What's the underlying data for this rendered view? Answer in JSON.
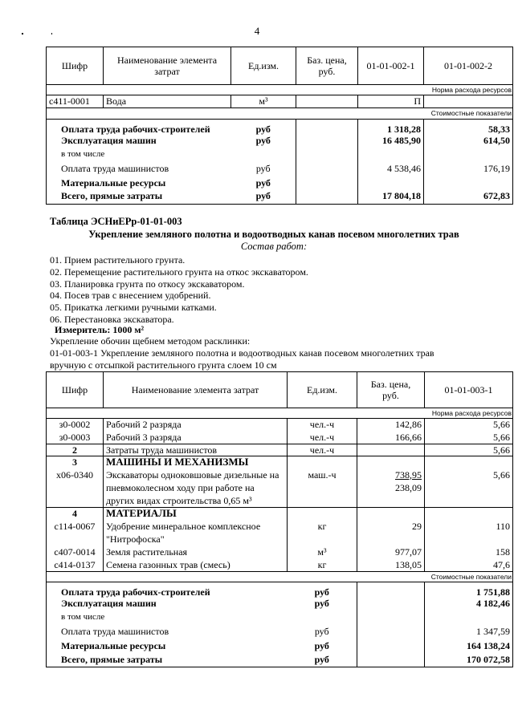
{
  "page_number": "4",
  "table1": {
    "headers": [
      "Шифр",
      "Наименование элемента затрат",
      "Ед.изм.",
      "Баз. цена, руб.",
      "01-01-002-1",
      "01-01-002-2"
    ],
    "section_norm": "Норма расхода ресурсов",
    "rows": [
      {
        "code": "с411-0001",
        "name": "Вода",
        "unit": "м³",
        "price": "",
        "v1": "П",
        "v2": ""
      }
    ],
    "section_cost": "Стоимостные показатели",
    "cost_rows": [
      {
        "name": "Оплата труда рабочих-строителей",
        "unit": "руб",
        "v1": "1 318,28",
        "v2": "58,33",
        "bold": true
      },
      {
        "name": "Эксплуатация машин",
        "unit": "руб",
        "v1": "16 485,90",
        "v2": "614,50",
        "bold": true
      },
      {
        "name": "в том числе",
        "unit": "",
        "v1": "",
        "v2": ""
      },
      {
        "name": "Оплата труда машинистов",
        "unit": "руб",
        "v1": "4 538,46",
        "v2": "176,19"
      },
      {
        "name": "Материальные ресурсы",
        "unit": "руб",
        "v1": "",
        "v2": "",
        "bold": true
      },
      {
        "name": "Всего, прямые затраты",
        "unit": "руб",
        "v1": "17 804,18",
        "v2": "672,83",
        "bold": true
      }
    ]
  },
  "section": {
    "table_title": "Таблица  ЭСНиЕРр-01-01-003",
    "subtitle": "Укрепление земляного полотна и водоотводных канав посевом многолетних трав",
    "work_heading": "Состав работ:",
    "work_items": [
      "01. Прием растительного грунта.",
      "02. Перемещение растительного грунта на откос экскаватором.",
      "03. Планировка грунта по откосу экскаватором.",
      "04. Посев трав с внесением удобрений.",
      "05. Прикатка легкими ручными катками.",
      "06. Перестановка экскаватора."
    ],
    "meter": "Измеритель: 1000 м²",
    "line1": "Укрепление обочин щебнем методом расклинки:",
    "line2": "01-01-003-1 Укрепление земляного полотна и водоотводных канав посевом многолетних трав",
    "line3": "вручную с отсыпкой растительного грунта слоем 10 см"
  },
  "table2": {
    "headers": [
      "Шифр",
      "Наименование элемента затрат",
      "Ед.изм.",
      "Баз. цена, руб.",
      "01-01-003-1"
    ],
    "section_norm": "Норма расхода ресурсов",
    "r1": {
      "code": "з0-0002",
      "name": "Рабочий 2 разряда",
      "unit": "чел.-ч",
      "price": "142,86",
      "v": "5,66"
    },
    "r2": {
      "code": "з0-0003",
      "name": "Рабочий 3 разряда",
      "unit": "чел.-ч",
      "price": "166,66",
      "v": "5,66"
    },
    "r3": {
      "code": "2",
      "name": "Затраты труда машинистов",
      "unit": "чел.-ч",
      "price": "",
      "v": "5,66"
    },
    "g3": {
      "code": "3",
      "name": "МАШИНЫ И МЕХАНИЗМЫ"
    },
    "r4": {
      "code": "х06-0340",
      "name1": "Экскаваторы одноковшовые дизельные на",
      "name2": "пневмоколесном ходу при работе на",
      "name3": "других видах строительства 0,65 м³",
      "unit": "маш.-ч",
      "price": "738,95",
      "price2": "238,09",
      "v": "5,66"
    },
    "g4": {
      "code": "4",
      "name": "МАТЕРИАЛЫ"
    },
    "r5": {
      "code": "с114-0067",
      "name1": "Удобрение минеральное комплексное",
      "name2": "\"Нитрофоска\"",
      "unit": "кг",
      "price": "29",
      "v": "110"
    },
    "r6": {
      "code": "с407-0014",
      "name": "Земля растительная",
      "unit": "м³",
      "price": "977,07",
      "v": "158"
    },
    "r7": {
      "code": "с414-0137",
      "name": "Семена газонных трав (смесь)",
      "unit": "кг",
      "price": "138,05",
      "v": "47,6"
    },
    "section_cost": "Стоимостные показатели",
    "cost_rows": [
      {
        "name": "Оплата труда рабочих-строителей",
        "unit": "руб",
        "v": "1 751,88",
        "bold": true
      },
      {
        "name": "Эксплуатация машин",
        "unit": "руб",
        "v": "4 182,46",
        "bold": true
      },
      {
        "name": "в том числе",
        "unit": "",
        "v": ""
      },
      {
        "name": "Оплата труда машинистов",
        "unit": "руб",
        "v": "1 347,59"
      },
      {
        "name": "Материальные ресурсы",
        "unit": "руб",
        "v": "164 138,24",
        "bold": true
      },
      {
        "name": "Всего, прямые затраты",
        "unit": "руб",
        "v": "170 072,58",
        "bold": true
      }
    ]
  }
}
